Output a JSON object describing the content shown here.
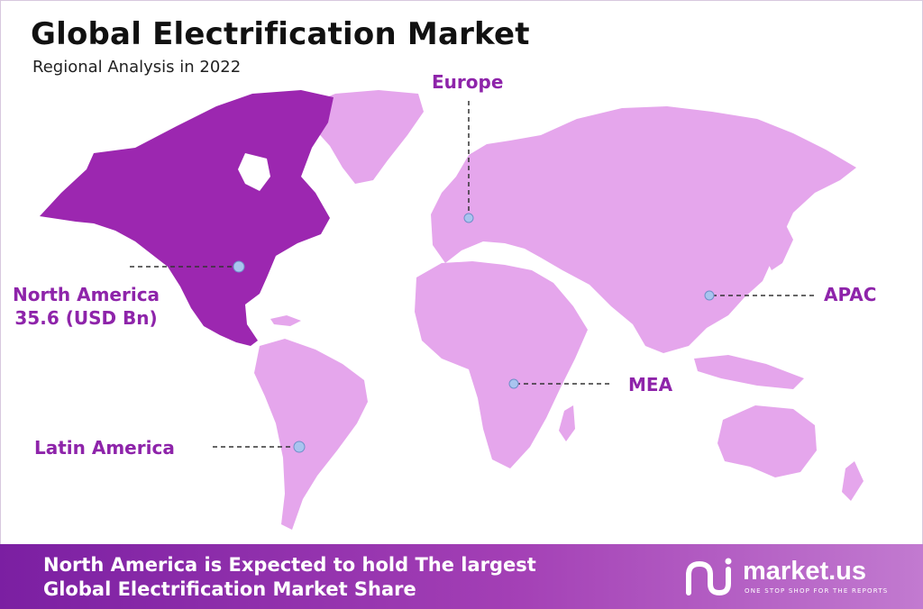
{
  "title": "Global Electrification Market",
  "subtitle": "Regional Analysis in 2022",
  "colors": {
    "highlight": "#9c27b0",
    "region": "#e5a6ec",
    "label": "#8e24aa",
    "marker": "#a9c4ef"
  },
  "regions": {
    "north_america": {
      "name": "North America",
      "value": "35.6 (USD Bn)"
    },
    "europe": {
      "name": "Europe"
    },
    "apac": {
      "name": "APAC"
    },
    "mea": {
      "name": "MEA"
    },
    "latin_america": {
      "name": "Latin America"
    }
  },
  "footer": {
    "line1": "North America is Expected to hold The largest",
    "line2": "Global Electrification Market Share"
  },
  "logo": {
    "word": "market.us",
    "tagline": "ONE STOP SHOP FOR THE REPORTS",
    "icon": "market-us-logo-icon"
  }
}
